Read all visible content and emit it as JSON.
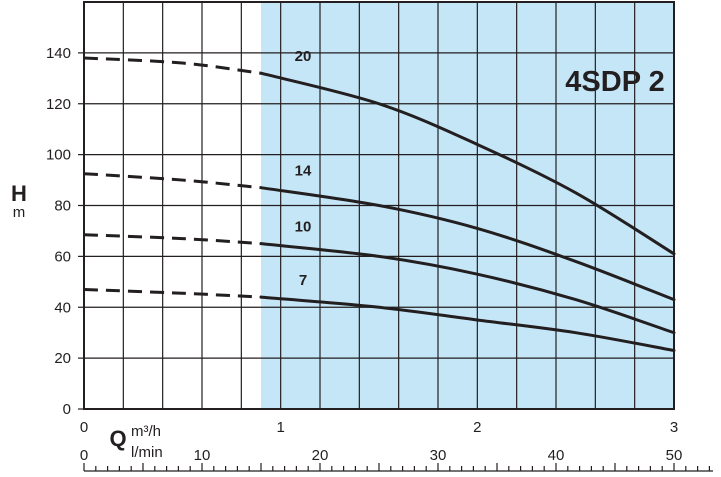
{
  "chart_data": {
    "type": "line",
    "title": "4SDP 2",
    "ylabel": "H",
    "ylabel_unit": "m",
    "xlabel": "Q",
    "x_units": [
      "m³/h",
      "l/min"
    ],
    "ylim": [
      0,
      140
    ],
    "xlim": [
      0,
      3
    ],
    "y_ticks": [
      0,
      20,
      40,
      60,
      80,
      100,
      120,
      140
    ],
    "x_ticks_m3h": [
      0,
      1,
      2,
      3
    ],
    "x_ticks_lmin": [
      0,
      10,
      20,
      30,
      40,
      50
    ],
    "shaded_region": {
      "x_start": 0.9,
      "x_end": 3.0,
      "color": "#c5e6f7"
    },
    "line_color": "#231f20",
    "grid": true,
    "series": [
      {
        "name": "20",
        "x": [
          0,
          0.5,
          0.9,
          1.5,
          2.0,
          2.5,
          3.0
        ],
        "y": [
          138,
          136,
          132,
          120,
          104,
          85,
          61
        ],
        "dashed_until": 0.9
      },
      {
        "name": "14",
        "x": [
          0,
          0.5,
          0.9,
          1.5,
          2.0,
          2.5,
          3.0
        ],
        "y": [
          92.5,
          90,
          87,
          80,
          71,
          58,
          43
        ],
        "dashed_until": 0.9
      },
      {
        "name": "10",
        "x": [
          0,
          0.5,
          0.9,
          1.5,
          2.0,
          2.5,
          3.0
        ],
        "y": [
          68.5,
          67,
          65,
          60,
          53,
          43,
          30
        ],
        "dashed_until": 0.9
      },
      {
        "name": "7",
        "x": [
          0,
          0.5,
          0.9,
          1.5,
          2.0,
          2.5,
          3.0
        ],
        "y": [
          47,
          45.5,
          44,
          40,
          35,
          30,
          23
        ],
        "dashed_until": 0.9
      }
    ]
  }
}
